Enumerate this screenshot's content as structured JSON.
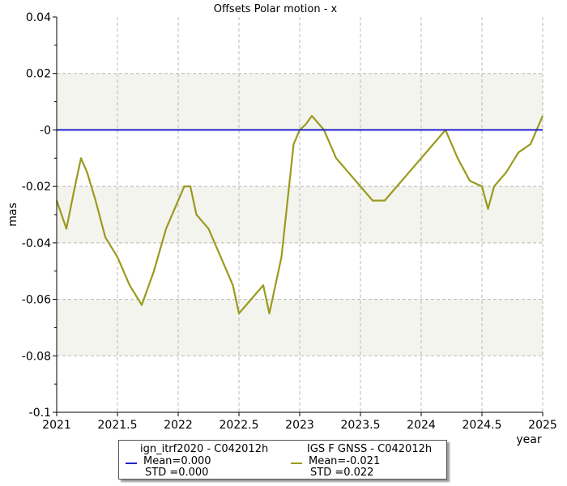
{
  "chart_data": {
    "type": "line",
    "title": "Offsets Polar motion - x",
    "xlabel": "year",
    "ylabel": "mas",
    "xlim": [
      2021,
      2025
    ],
    "ylim": [
      -0.1,
      0.04
    ],
    "x_ticks": [
      "2021",
      "2021.5",
      "2022",
      "2022.5",
      "2023",
      "2023.5",
      "2024",
      "2024.5",
      "2025"
    ],
    "y_ticks": [
      "0.04",
      "0.02",
      "-0",
      "-0.02",
      "-0.04",
      "-0.06",
      "-0.08",
      "-0.1"
    ],
    "grid": true,
    "shaded_bands": [
      [
        0,
        0.02
      ],
      [
        -0.04,
        -0.02
      ],
      [
        -0.08,
        -0.06
      ]
    ],
    "legend_position": "bottom",
    "series": [
      {
        "name": "ign_itrf2020 - C042012h",
        "stats": [
          "Mean=0.000",
          "STD =0.000"
        ],
        "color": "#2222cc",
        "x": [
          2021,
          2025
        ],
        "y": [
          0.0,
          0.0
        ]
      },
      {
        "name": "IGS F GNSS - C042012h",
        "stats": [
          "Mean=-0.021",
          "STD =0.022"
        ],
        "color": "#9a9a1e",
        "x": [
          2021.0,
          2021.08,
          2021.15,
          2021.2,
          2021.25,
          2021.32,
          2021.4,
          2021.5,
          2021.6,
          2021.7,
          2021.8,
          2021.9,
          2022.0,
          2022.05,
          2022.1,
          2022.15,
          2022.25,
          2022.35,
          2022.45,
          2022.5,
          2022.6,
          2022.7,
          2022.75,
          2022.85,
          2022.95,
          2023.0,
          2023.05,
          2023.1,
          2023.2,
          2023.3,
          2023.4,
          2023.5,
          2023.6,
          2023.7,
          2023.8,
          2023.9,
          2024.0,
          2024.1,
          2024.2,
          2024.3,
          2024.4,
          2024.5,
          2024.55,
          2024.6,
          2024.7,
          2024.8,
          2024.9,
          2025.0
        ],
        "y": [
          -0.025,
          -0.035,
          -0.02,
          -0.01,
          -0.015,
          -0.025,
          -0.038,
          -0.045,
          -0.055,
          -0.062,
          -0.05,
          -0.035,
          -0.025,
          -0.02,
          -0.02,
          -0.03,
          -0.035,
          -0.045,
          -0.055,
          -0.065,
          -0.06,
          -0.055,
          -0.065,
          -0.045,
          -0.005,
          0.0,
          0.002,
          0.005,
          0.0,
          -0.01,
          -0.015,
          -0.02,
          -0.025,
          -0.025,
          -0.02,
          -0.015,
          -0.01,
          -0.005,
          0.0,
          -0.01,
          -0.018,
          -0.02,
          -0.028,
          -0.02,
          -0.015,
          -0.008,
          -0.005,
          0.005
        ]
      }
    ]
  }
}
